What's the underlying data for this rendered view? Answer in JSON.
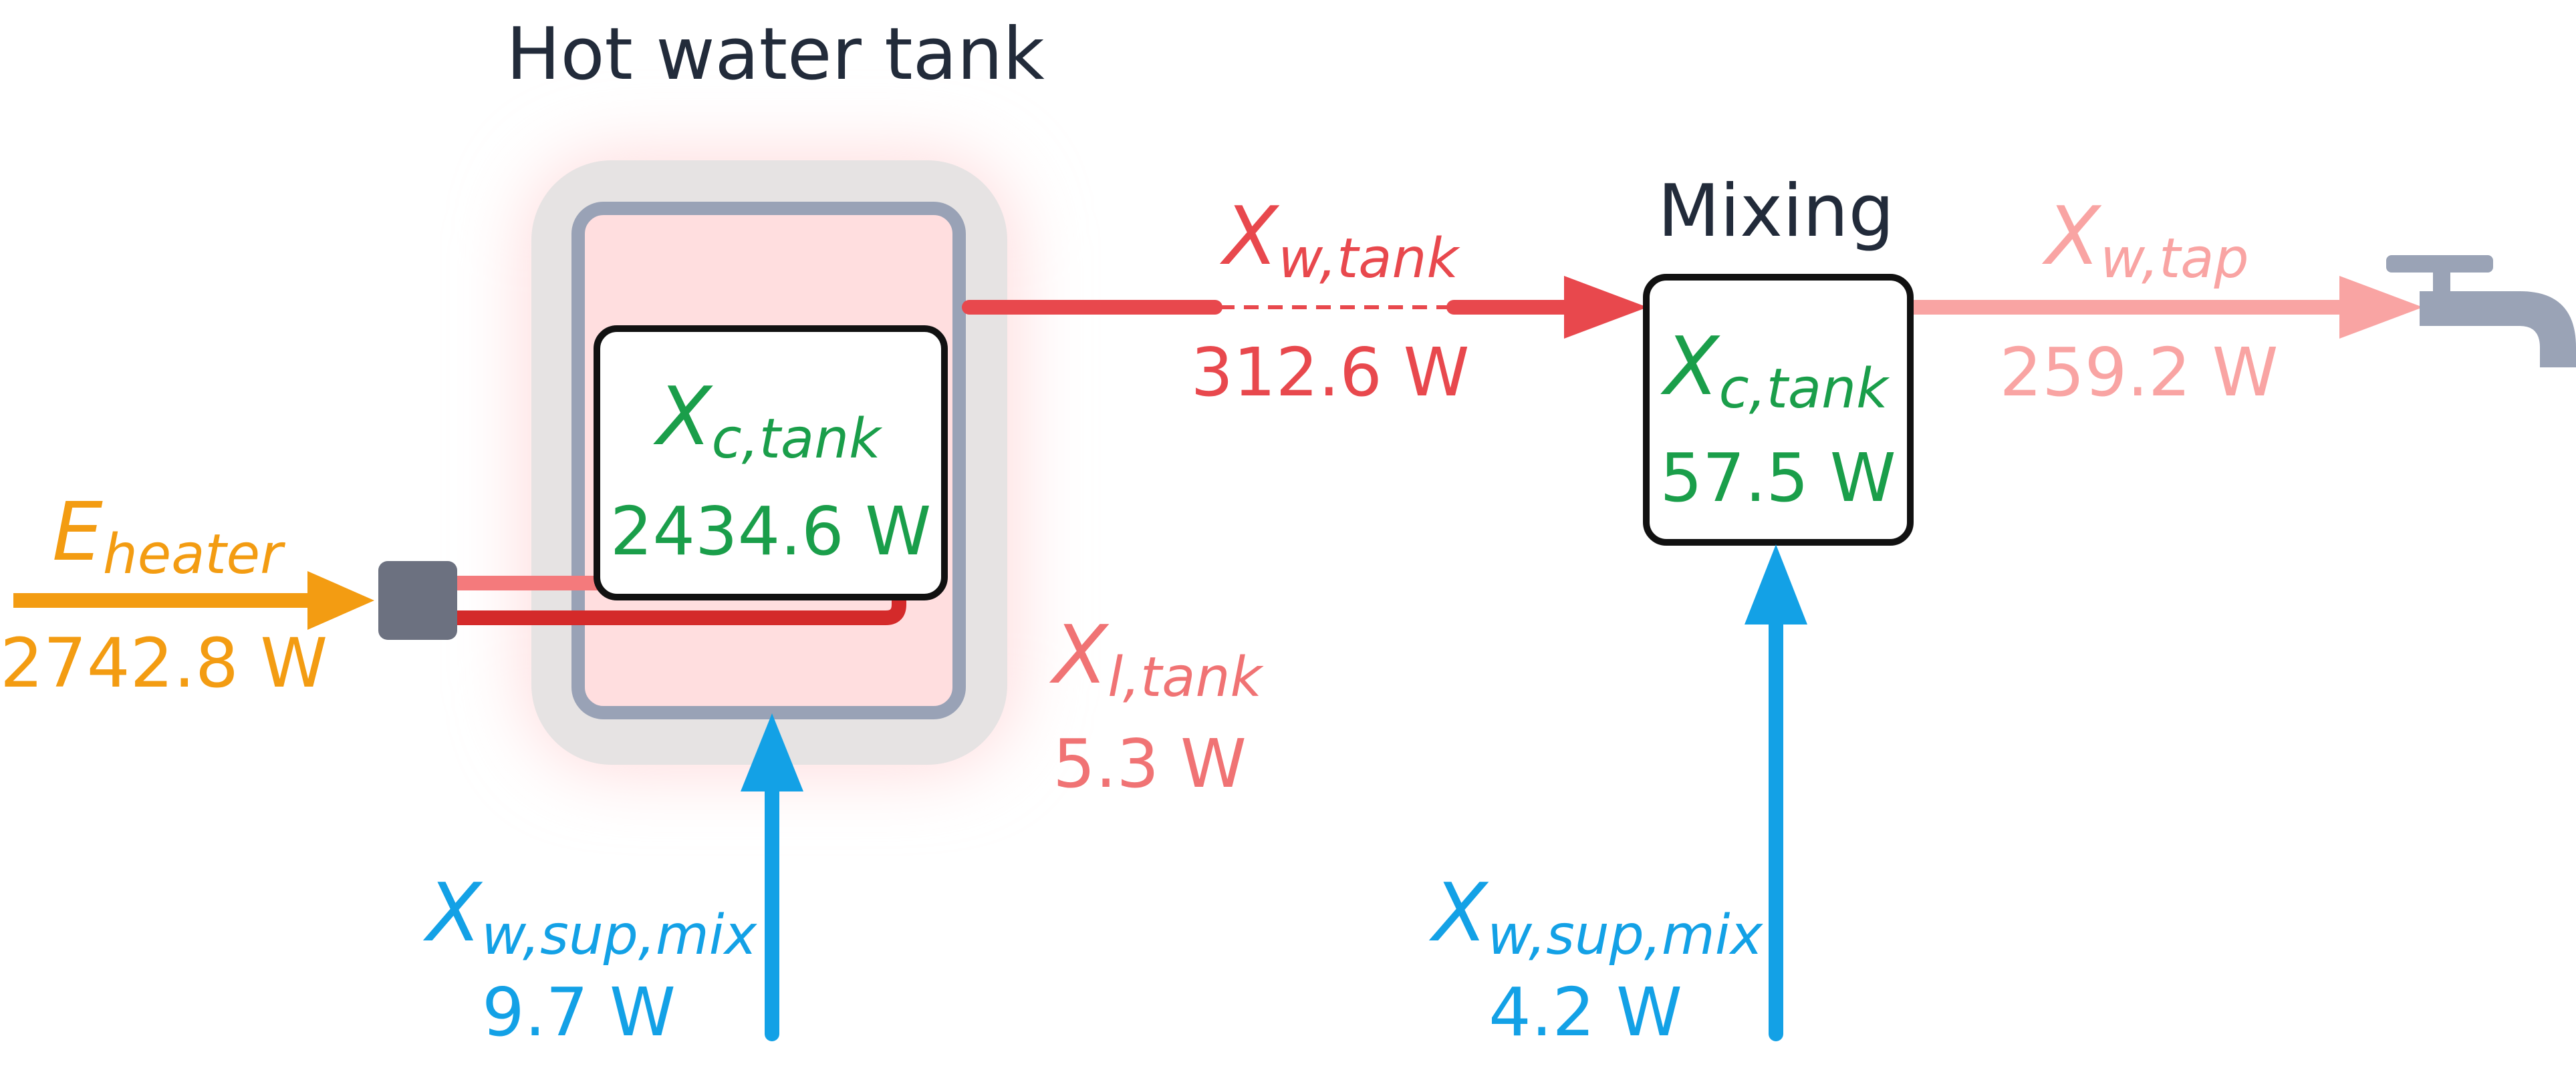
{
  "colors": {
    "title": "#222b3a",
    "energy": "#f39c12",
    "hot_water": "#e8484d",
    "loss": "#f07374",
    "tap": "#f9a4a3",
    "supply": "#13a1e6",
    "destruction": "#1a9e4a",
    "tank_glow": "#ffd9da",
    "tank_shell": "#e6e3e3",
    "tank_inner": "#ffdedf",
    "tank_border": "#99a2b6",
    "heater_coil_light": "#f47a7c",
    "heater_coil_dark": "#d42a2a",
    "heater_block": "#6c7180",
    "faucet": "#9aa3b6",
    "box_border": "#111111"
  },
  "tank": {
    "title": "Hot water tank",
    "destruction": {
      "symbol": "X",
      "sub": "c,tank",
      "value": "2434.6 W"
    }
  },
  "mixing": {
    "title": "Mixing",
    "destruction": {
      "symbol": "X",
      "sub": "c,tank",
      "value": "57.5 W"
    }
  },
  "flows": {
    "heater": {
      "symbol": "E",
      "sub": "heater",
      "value": "2742.8 W"
    },
    "tank_out": {
      "symbol": "X",
      "sub": "w,tank",
      "value": "312.6 W"
    },
    "tap": {
      "symbol": "X",
      "sub": "w,tap",
      "value": "259.2 W"
    },
    "loss": {
      "symbol": "X",
      "sub": "l,tank",
      "value": "5.3 W"
    },
    "supply_tank": {
      "symbol": "X",
      "sub": "w,sup,mix",
      "value": "9.7 W"
    },
    "supply_mix": {
      "symbol": "X",
      "sub": "w,sup,mix",
      "value": "4.2 W"
    }
  },
  "icons": {
    "faucet": "faucet-icon",
    "heater": "heater-element-icon"
  }
}
